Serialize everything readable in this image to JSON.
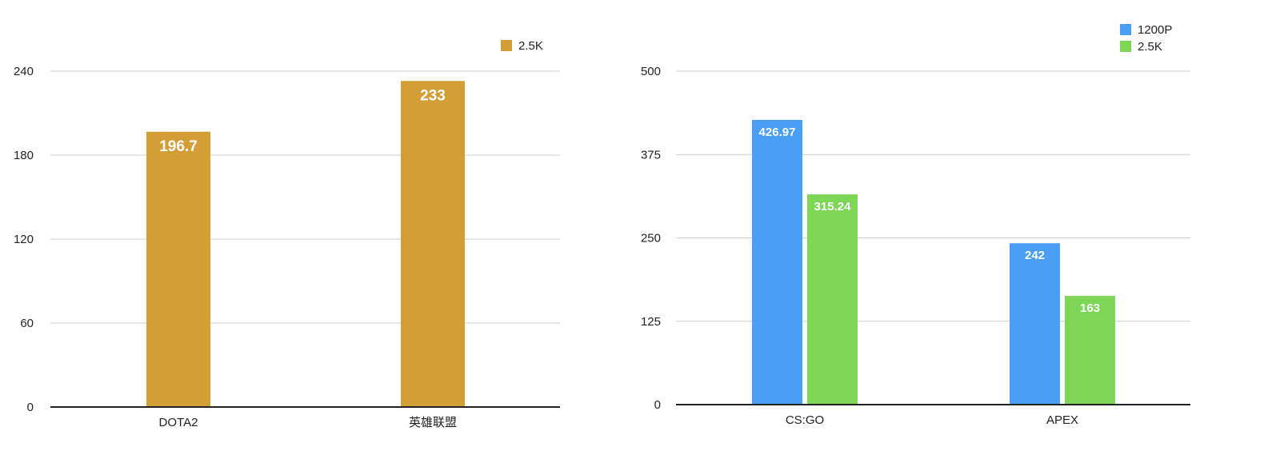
{
  "chart_data": [
    {
      "type": "bar",
      "categories": [
        "DOTA2",
        "英雄联盟"
      ],
      "series": [
        {
          "name": "2.5K",
          "color": "#D49E36",
          "values": [
            196.7,
            233
          ]
        }
      ],
      "data_labels": [
        [
          "196.7",
          "233"
        ]
      ],
      "ylim": [
        0,
        240
      ],
      "yticks": [
        0,
        60,
        120,
        180,
        240
      ],
      "grid": true,
      "legend": "top-right"
    },
    {
      "type": "bar",
      "categories": [
        "CS:GO",
        "APEX"
      ],
      "series": [
        {
          "name": "1200P",
          "color": "#4A9FF5",
          "values": [
            426.97,
            242
          ]
        },
        {
          "name": "2.5K",
          "color": "#7DD655",
          "values": [
            315.24,
            163
          ]
        }
      ],
      "data_labels": [
        [
          "426.97",
          "242"
        ],
        [
          "315.24",
          "163"
        ]
      ],
      "ylim": [
        0,
        500
      ],
      "yticks": [
        0,
        125,
        250,
        375,
        500
      ],
      "grid": true,
      "legend": "top-right"
    }
  ]
}
